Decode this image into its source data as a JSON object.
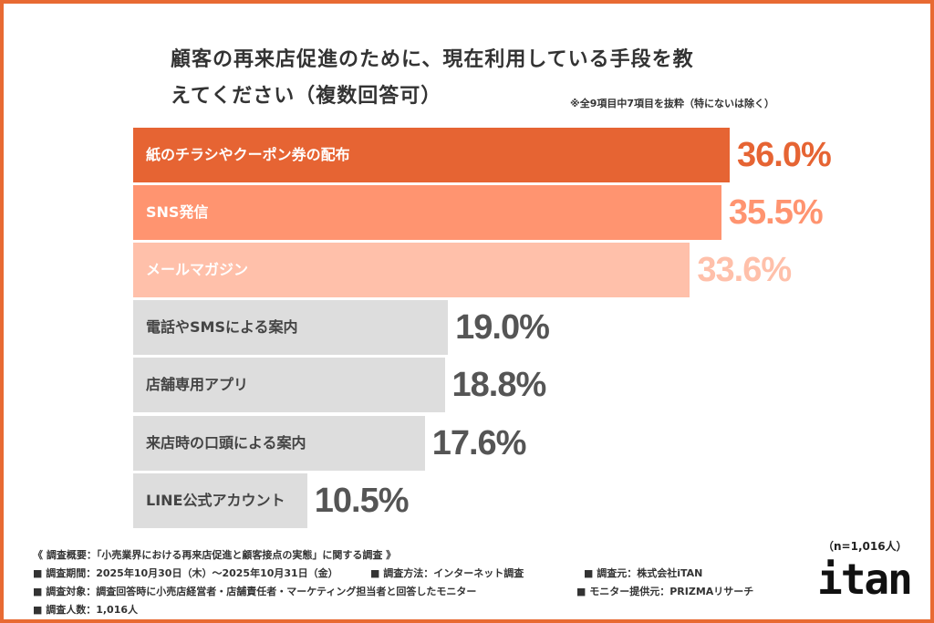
{
  "title_line1": "顧客の再来店促進のために、現在利用している手段を教",
  "title_line2": "えてください（複数回答可）",
  "note": "※全9項目中7項目を抜粋（特にないは除く）",
  "chart_data": {
    "type": "bar",
    "orientation": "horizontal",
    "title": "顧客の再来店促進のために、現在利用している手段を教えてください（複数回答可）",
    "categories": [
      "紙のチラシやクーポン券の配布",
      "SNS発信",
      "メールマガジン",
      "電話やSMSによる案内",
      "店舗専用アプリ",
      "来店時の口頭による案内",
      "LINE公式アカウント"
    ],
    "values": [
      36.0,
      35.5,
      33.6,
      19.0,
      18.8,
      17.6,
      10.5
    ],
    "value_labels": [
      "36.0%",
      "35.5%",
      "33.6%",
      "19.0%",
      "18.8%",
      "17.6%",
      "10.5%"
    ],
    "unit": "%",
    "bar_colors": [
      "#e66433",
      "#ff9470",
      "#ffc0aa",
      "#dddddd",
      "#dddddd",
      "#dddddd",
      "#dddddd"
    ],
    "label_colors": [
      "#ffffff",
      "#ffffff",
      "#ffffff",
      "#444444",
      "#444444",
      "#444444",
      "#444444"
    ],
    "value_colors": [
      "#e66433",
      "#ff9470",
      "#ffc0aa",
      "#555555",
      "#555555",
      "#555555",
      "#555555"
    ],
    "xlim": [
      0,
      36
    ],
    "grid": false,
    "legend": "none"
  },
  "footer": {
    "overview": "《 調査概要：「小売業界における再来店促進と顧客接点の実態」に関する調査 》",
    "period": "■ 調査期間：2025年10月30日（木）〜2025年10月31日（金）",
    "method": "■ 調査方法：インターネット調査",
    "source": "■ 調査元：株式会社iTAN",
    "target": "■ 調査対象：調査回答時に小売店経営者・店舗責任者・マーケティング担当者と回答したモニター",
    "provider": "■ モニター提供元：PRIZMAリサーチ",
    "count": "■ 調査人数：1,016人"
  },
  "sample_size": "（n=1,016人）",
  "logo_text": "itan",
  "colors": {
    "border": "#e86a33",
    "accent": "#e66433"
  }
}
